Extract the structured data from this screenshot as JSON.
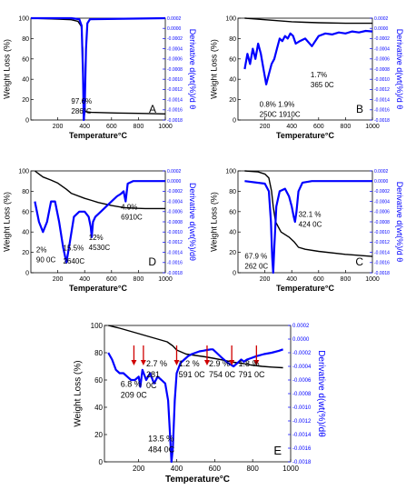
{
  "chart_data": [
    {
      "id": "A",
      "type": "line",
      "panel_label": "A",
      "xlabel": "Temperature°C",
      "ylabel": "Weight Loss (%)",
      "y2label": "Derivative d(wt(%)/d θ",
      "xlim": [
        0,
        1000
      ],
      "ylim": [
        0,
        100
      ],
      "y2lim": [
        -0.0018,
        0.0002
      ],
      "xticks": [
        200,
        400,
        600,
        800,
        1000
      ],
      "yticks": [
        0,
        20,
        40,
        60,
        80,
        100
      ],
      "y2ticks": [
        0.0002,
        0.0,
        -0.0002,
        -0.0004,
        -0.0006,
        -0.0008,
        -0.001,
        -0.0012,
        -0.0014,
        -0.0016,
        -0.0018
      ],
      "series": [
        {
          "role": "weight",
          "color": "#000000",
          "x": [
            0,
            100,
            200,
            300,
            350,
            375,
            385,
            392,
            400,
            410,
            450,
            600,
            800,
            1000
          ],
          "y": [
            100,
            99.5,
            99,
            98.5,
            97,
            92,
            70,
            30,
            10,
            8,
            7.5,
            7,
            6.5,
            6
          ]
        },
        {
          "role": "derivative",
          "color": "#0000ff",
          "x": [
            0,
            300,
            360,
            378,
            388,
            393,
            400,
            410,
            420,
            440,
            1000
          ],
          "y": [
            0.0002,
            0.0002,
            0.00018,
            5e-05,
            -0.0009,
            -0.0018,
            -0.0016,
            -0.0004,
            0.0001,
            0.00018,
            0.0002
          ]
        }
      ],
      "annotations": [
        {
          "lines": [
            "97.6%",
            "286°C"
          ],
          "x": 300,
          "y": 16
        }
      ]
    },
    {
      "id": "B",
      "type": "line",
      "panel_label": "B",
      "xlabel": "Temperature°C",
      "ylabel": "Weight Loss (%)",
      "y2label": "Derivative d(wt(%)/d θ",
      "xlim": [
        0,
        1000
      ],
      "ylim": [
        0,
        100
      ],
      "y2lim": [
        -0.0018,
        0.0002
      ],
      "xticks": [
        200,
        400,
        600,
        800,
        1000
      ],
      "yticks": [
        0,
        20,
        40,
        60,
        80,
        100
      ],
      "y2ticks": [
        0.0002,
        0.0,
        -0.0002,
        -0.0004,
        -0.0006,
        -0.0008,
        -0.001,
        -0.0012,
        -0.0014,
        -0.0016,
        -0.0018
      ],
      "series": [
        {
          "role": "weight",
          "color": "#000000",
          "x": [
            50,
            100,
            200,
            300,
            400,
            500,
            600,
            800,
            1000
          ],
          "y": [
            100,
            99.5,
            98.5,
            97.5,
            96.5,
            96,
            95.5,
            95,
            95
          ]
        },
        {
          "role": "derivative",
          "color": "#0000ff",
          "x": [
            50,
            70,
            90,
            110,
            130,
            150,
            170,
            190,
            210,
            230,
            250,
            270,
            290,
            310,
            330,
            350,
            370,
            390,
            410,
            430,
            460,
            500,
            550,
            600,
            650,
            700,
            750,
            800,
            850,
            900,
            950,
            1000
          ],
          "y": [
            -0.0008,
            -0.0005,
            -0.0007,
            -0.0004,
            -0.0006,
            -0.0003,
            -0.0005,
            -0.0008,
            -0.0011,
            -0.0009,
            -0.0007,
            -0.0006,
            -0.0004,
            -0.0002,
            -0.00025,
            -0.00015,
            -0.0002,
            -0.0001,
            -0.00015,
            -0.0003,
            -0.00025,
            -0.0002,
            -0.00035,
            -0.00015,
            -0.0001,
            -0.00012,
            -8e-05,
            -0.0001,
            -6e-05,
            -8e-05,
            -5e-05,
            -6e-05
          ]
        }
      ],
      "annotations": [
        {
          "lines": [
            "1.7%",
            "365 0C"
          ],
          "x": 540,
          "y": 42
        },
        {
          "lines": [
            "0.8%   1.9%",
            "250C  1910C"
          ],
          "x": 160,
          "y": 13
        }
      ]
    },
    {
      "id": "D",
      "type": "line",
      "panel_label": "D",
      "xlabel": "Temperature°C",
      "ylabel": "Weight Loss (%)",
      "y2label": "Derivative d(wt(%)/dθ",
      "xlim": [
        0,
        1000
      ],
      "ylim": [
        0,
        100
      ],
      "y2lim": [
        -0.0018,
        0.0002
      ],
      "xticks": [
        200,
        400,
        600,
        800,
        1000
      ],
      "yticks": [
        0,
        20,
        40,
        60,
        80,
        100
      ],
      "y2ticks": [
        0.0002,
        0.0,
        -0.0002,
        -0.0004,
        -0.0006,
        -0.0008,
        -0.001,
        -0.0012,
        -0.0014,
        -0.0016,
        -0.0018
      ],
      "series": [
        {
          "role": "weight",
          "color": "#000000",
          "x": [
            30,
            60,
            90,
            150,
            200,
            264,
            300,
            400,
            453,
            500,
            600,
            691,
            750,
            850,
            1000
          ],
          "y": [
            100,
            97,
            94,
            91,
            88,
            82,
            78,
            73,
            71,
            69,
            66,
            64,
            63.5,
            63,
            63
          ]
        },
        {
          "role": "derivative",
          "color": "#0000ff",
          "x": [
            30,
            60,
            90,
            120,
            150,
            180,
            210,
            240,
            264,
            290,
            320,
            360,
            400,
            430,
            445,
            453,
            462,
            480,
            520,
            560,
            600,
            640,
            670,
            690,
            705,
            720,
            760,
            800,
            850,
            900,
            1000
          ],
          "y": [
            -0.0004,
            -0.0008,
            -0.001,
            -0.0008,
            -0.0004,
            -0.0004,
            -0.0008,
            -0.0013,
            -0.0016,
            -0.0012,
            -0.0007,
            -0.0006,
            -0.0006,
            -0.0007,
            -0.0009,
            -0.0011,
            -0.0008,
            -0.0007,
            -0.0006,
            -0.0005,
            -0.0004,
            -0.0003,
            -0.00025,
            -0.0002,
            -0.0004,
            -5e-05,
            0.0,
            0.0,
            0.0,
            0.0,
            0.0
          ]
        }
      ],
      "annotations": [
        {
          "lines": [
            "4.9%",
            "6910C"
          ],
          "x": 670,
          "y": 62
        },
        {
          "lines": [
            "12%",
            "4530C"
          ],
          "x": 430,
          "y": 32
        },
        {
          "lines": [
            "15.5%"
          ],
          "x": 240,
          "y": 22
        },
        {
          "lines": [
            "2%",
            "90 0C"
          ],
          "x": 40,
          "y": 20
        },
        {
          "lines": [
            "2640C"
          ],
          "x": 240,
          "y": 9
        }
      ]
    },
    {
      "id": "C",
      "type": "line",
      "panel_label": "C",
      "xlabel": "Temperature°C",
      "ylabel": "Weight Loss (%)",
      "y2label": "Derivative d(wt(%)/d θ",
      "xlim": [
        0,
        1000
      ],
      "ylim": [
        0,
        100
      ],
      "y2lim": [
        -0.0018,
        0.0002
      ],
      "xticks": [
        200,
        400,
        600,
        800,
        1000
      ],
      "yticks": [
        0,
        20,
        40,
        60,
        80,
        100
      ],
      "y2ticks": [
        0.0002,
        0.0,
        -0.0002,
        -0.0004,
        -0.0006,
        -0.0008,
        -0.001,
        -0.0012,
        -0.0014,
        -0.0016,
        -0.0018
      ],
      "series": [
        {
          "role": "weight",
          "color": "#000000",
          "x": [
            50,
            150,
            200,
            230,
            250,
            262,
            280,
            320,
            380,
            420,
            450,
            500,
            600,
            800,
            1000
          ],
          "y": [
            100,
            99,
            97,
            93,
            80,
            65,
            50,
            40,
            35,
            30,
            25,
            23,
            21,
            18,
            16
          ]
        },
        {
          "role": "derivative",
          "color": "#0000ff",
          "x": [
            50,
            200,
            230,
            245,
            255,
            262,
            270,
            285,
            310,
            350,
            380,
            400,
            415,
            424,
            435,
            450,
            480,
            550,
            1000
          ],
          "y": [
            0.0,
            -5e-05,
            -0.0002,
            -0.0008,
            -0.0015,
            -0.0018,
            -0.0013,
            -0.0005,
            -0.0002,
            -0.00015,
            -0.0003,
            -0.0005,
            -0.0007,
            -0.0008,
            -0.0006,
            -0.0002,
            -3e-05,
            0.0,
            0.0
          ]
        }
      ],
      "annotations": [
        {
          "lines": [
            "32.1 %",
            "424  0C"
          ],
          "x": 450,
          "y": 55
        },
        {
          "lines": [
            "67.9 %",
            "262  0C"
          ],
          "x": 50,
          "y": 14
        }
      ]
    },
    {
      "id": "E",
      "type": "line",
      "panel_label": "E",
      "xlabel": "Temperature°C",
      "ylabel": "Weight Loss (%)",
      "y2label": "Derivative d(wt(%)/dθ",
      "xlim": [
        20,
        1000
      ],
      "ylim": [
        0,
        100
      ],
      "y2lim": [
        -0.0018,
        0.0002
      ],
      "xticks": [
        200,
        400,
        600,
        800,
        1000
      ],
      "yticks": [
        0,
        20,
        40,
        60,
        80,
        100
      ],
      "y2ticks": [
        0.0002,
        0.0,
        -0.0002,
        -0.0004,
        -0.0006,
        -0.0008,
        -0.001,
        -0.0012,
        -0.0014,
        -0.0016,
        -0.0018
      ],
      "series": [
        {
          "role": "weight",
          "color": "#000000",
          "x": [
            40,
            100,
            150,
            200,
            250,
            300,
            350,
            380,
            400,
            450,
            500,
            550,
            591,
            650,
            700,
            754,
            791,
            850,
            900,
            960
          ],
          "y": [
            100,
            98,
            96,
            94,
            92,
            90,
            88,
            85,
            82,
            79,
            78,
            77,
            76,
            74.5,
            73,
            72,
            71,
            70,
            69.5,
            69
          ]
        },
        {
          "role": "derivative",
          "color": "#0000ff",
          "x": [
            40,
            60,
            80,
            100,
            120,
            140,
            160,
            180,
            200,
            209,
            220,
            240,
            260,
            281,
            300,
            320,
            340,
            355,
            365,
            373,
            380,
            390,
            400,
            420,
            440,
            460,
            480,
            500,
            520,
            540,
            560,
            580,
            591,
            610,
            640,
            670,
            700,
            720,
            740,
            754,
            770,
            791,
            820,
            860,
            900,
            940,
            960
          ],
          "y": [
            -0.0002,
            -0.0003,
            -0.00045,
            -0.0005,
            -0.0005,
            -0.00055,
            -0.0006,
            -0.0006,
            -0.00055,
            -0.0007,
            -0.00045,
            -0.0006,
            -0.0005,
            -0.00065,
            -0.00055,
            -0.0006,
            -0.00065,
            -0.0009,
            -0.0014,
            -0.0018,
            -0.0016,
            -0.0009,
            -0.0005,
            -0.00035,
            -0.0003,
            -0.00025,
            -0.00022,
            -0.0002,
            -0.00018,
            -0.00017,
            -0.00016,
            -0.00015,
            -0.00015,
            -0.0002,
            -0.00028,
            -0.00035,
            -0.0004,
            -0.00035,
            -0.0003,
            -0.00033,
            -0.0003,
            -0.00028,
            -0.00025,
            -0.00022,
            -0.0002,
            -0.00017,
            -0.00015
          ]
        }
      ],
      "arrows_x": [
        175,
        225,
        400,
        560,
        690,
        820
      ],
      "annotations": [
        {
          "lines": [
            "2.7 %",
            "281",
            "0C"
          ],
          "x": 240,
          "y": 70
        },
        {
          "lines": [
            "6.8 %",
            "209 0C"
          ],
          "x": 105,
          "y": 55
        },
        {
          "lines": [
            "13.5 %",
            "484  0C"
          ],
          "x": 250,
          "y": 15
        },
        {
          "lines": [
            "1.2 %",
            "591 0C"
          ],
          "x": 410,
          "y": 70
        },
        {
          "lines": [
            "2.9 %",
            "754 0C"
          ],
          "x": 570,
          "y": 70
        },
        {
          "lines": [
            "1.8 %",
            "791 0C"
          ],
          "x": 725,
          "y": 70
        }
      ]
    }
  ]
}
